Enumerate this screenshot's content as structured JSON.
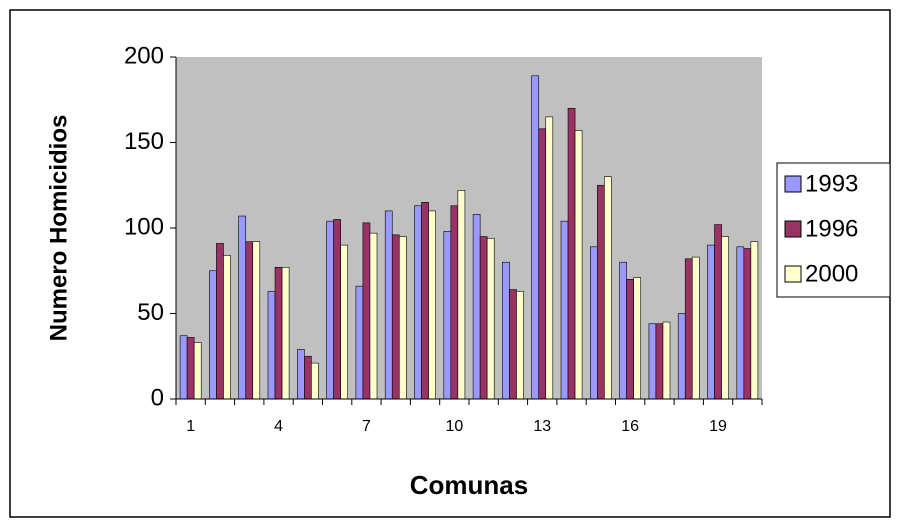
{
  "chart_data": {
    "type": "bar",
    "xlabel": "Comunas",
    "ylabel": "Numero Homicidios",
    "categories": [
      1,
      null,
      null,
      4,
      null,
      null,
      7,
      null,
      null,
      10,
      null,
      null,
      13,
      null,
      null,
      16,
      null,
      null,
      19,
      null
    ],
    "series": [
      {
        "name": "1993",
        "color": "#9999ff",
        "values": [
          37,
          75,
          107,
          63,
          29,
          104,
          66,
          110,
          113,
          98,
          108,
          80,
          189,
          104,
          89,
          80,
          44,
          50,
          90,
          89
        ]
      },
      {
        "name": "1996",
        "color": "#993366",
        "values": [
          36,
          91,
          92,
          77,
          25,
          105,
          103,
          96,
          115,
          113,
          95,
          64,
          158,
          170,
          125,
          70,
          44,
          82,
          102,
          88
        ]
      },
      {
        "name": "2000",
        "color": "#ffffcc",
        "values": [
          33,
          84,
          92,
          77,
          21,
          90,
          97,
          95,
          110,
          122,
          94,
          63,
          165,
          157,
          130,
          71,
          45,
          83,
          95,
          92
        ]
      }
    ],
    "ylim": [
      0,
      200
    ],
    "yticks": [
      0,
      50,
      100,
      150,
      200
    ],
    "plot_background": "#c0c0c0",
    "legend": "right"
  }
}
